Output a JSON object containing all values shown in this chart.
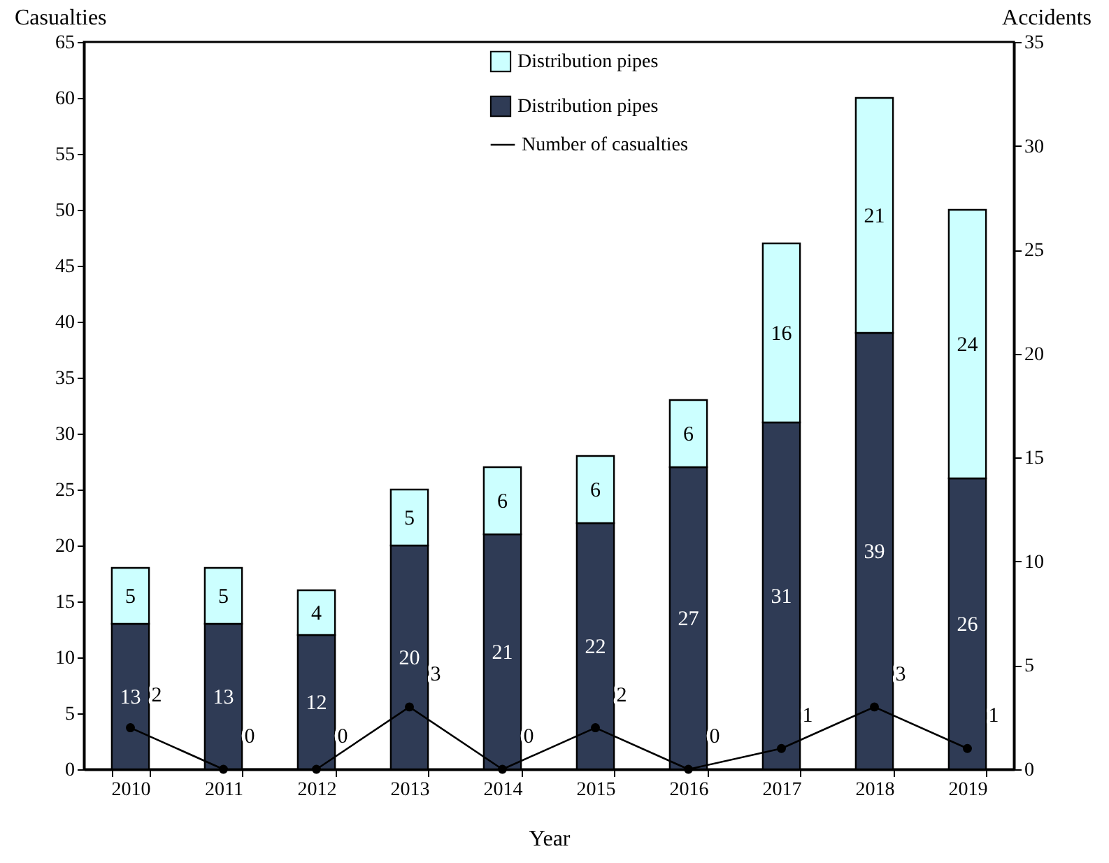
{
  "chart_data": {
    "type": "bar",
    "stacked": true,
    "xlabel": "Year",
    "ylabel": "Casualties",
    "y2label": "Accidents",
    "categories": [
      "2010",
      "2011",
      "2012",
      "2013",
      "2014",
      "2015",
      "2016",
      "2017",
      "2018",
      "2019"
    ],
    "series": [
      {
        "name": "Distribution pipes",
        "color": "#2f3b55",
        "values": [
          13,
          13,
          12,
          20,
          21,
          22,
          27,
          31,
          39,
          26
        ]
      },
      {
        "name": "Distribution pipes",
        "color": "#ccffff",
        "values": [
          5,
          5,
          4,
          5,
          6,
          6,
          6,
          16,
          21,
          24
        ]
      },
      {
        "name": "Number of casualties",
        "type": "line",
        "axis": "y2",
        "color": "#000000",
        "marker": "circle",
        "values": [
          2,
          0,
          0,
          3,
          0,
          2,
          0,
          1,
          3,
          1
        ]
      }
    ],
    "ylim": [
      0,
      65
    ],
    "yticks": [
      0,
      5,
      10,
      15,
      20,
      25,
      30,
      35,
      40,
      45,
      50,
      55,
      60,
      65
    ],
    "y2lim": [
      0,
      35
    ],
    "y2ticks": [
      0,
      5,
      10,
      15,
      20,
      25,
      30,
      35
    ],
    "data_labels": true,
    "grid": false,
    "legend": "top"
  }
}
